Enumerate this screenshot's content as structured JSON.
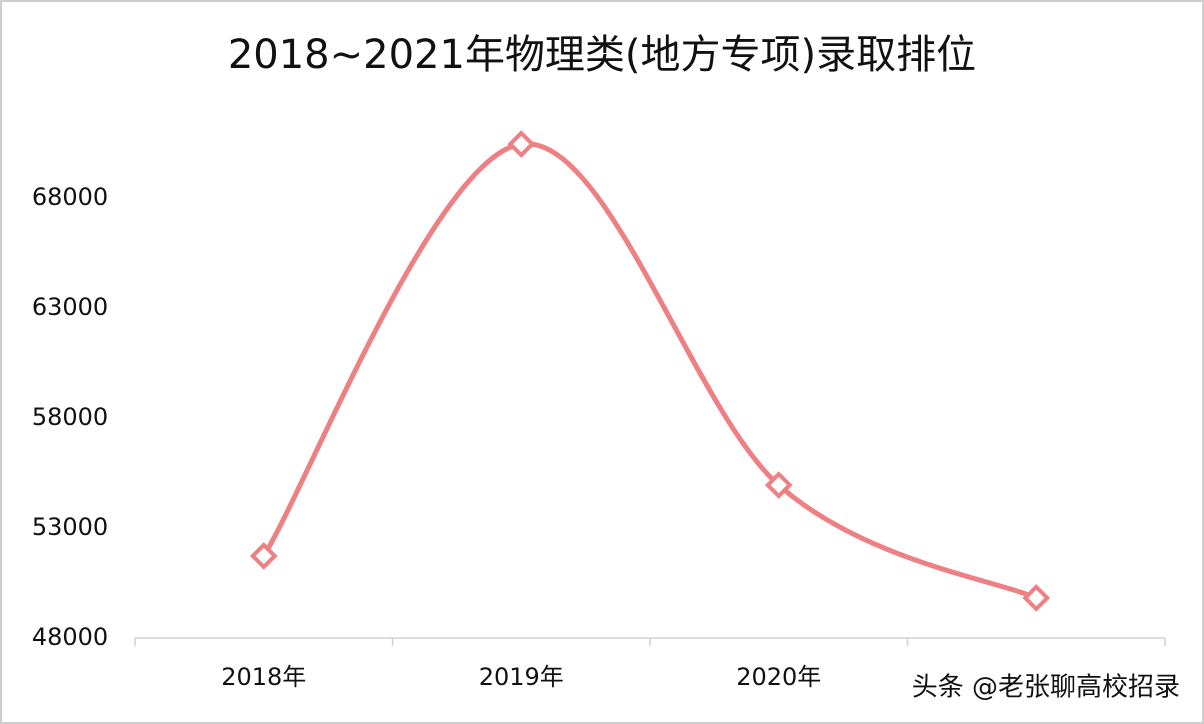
{
  "chart_data": {
    "type": "line",
    "title": "2018~2021年物理类(地方专项)录取排位",
    "categories": [
      "2018年",
      "2019年",
      "2020年",
      null
    ],
    "series": [
      {
        "name": "录取排位",
        "color": "#ee7f82",
        "values": [
          51730,
          70450,
          54950,
          49820
        ]
      }
    ],
    "ylim": [
      48000,
      73000
    ],
    "yticks": [
      48000,
      53000,
      58000,
      63000,
      68000
    ],
    "smooth": true,
    "grid": false,
    "legend": false,
    "watermark": "头条 @老张聊高校招录"
  }
}
